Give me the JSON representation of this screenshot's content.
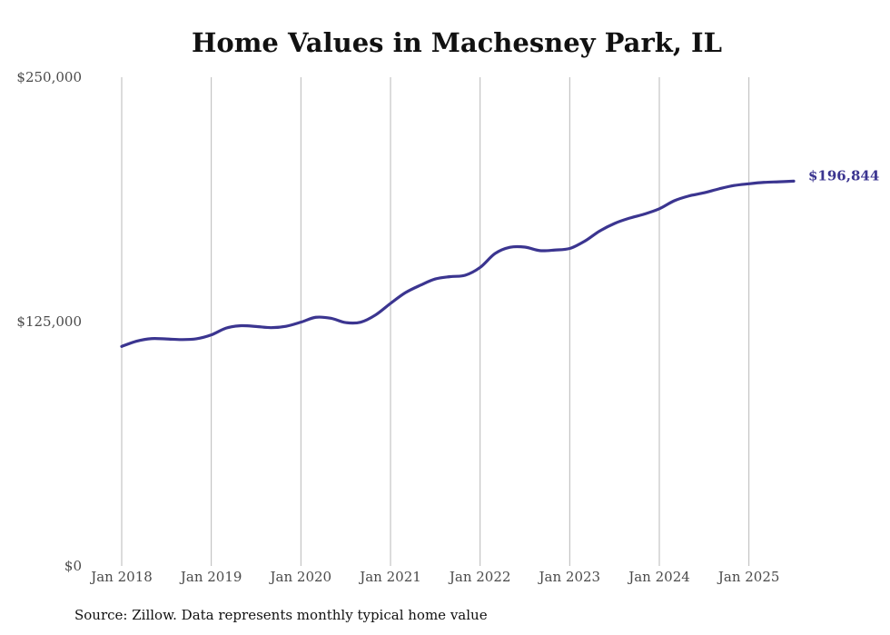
{
  "chart_data": {
    "type": "line",
    "title": "Home Values in Machesney Park, IL",
    "source_note": "Source: Zillow. Data represents monthly typical home value",
    "y_ticks": [
      {
        "value": 0,
        "label": "$0"
      },
      {
        "value": 125000,
        "label": "$125,000"
      },
      {
        "value": 250000,
        "label": "$250,000"
      }
    ],
    "x_ticks": [
      {
        "value": "2018-01",
        "label": "Jan 2018"
      },
      {
        "value": "2019-01",
        "label": "Jan 2019"
      },
      {
        "value": "2020-01",
        "label": "Jan 2020"
      },
      {
        "value": "2021-01",
        "label": "Jan 2021"
      },
      {
        "value": "2022-01",
        "label": "Jan 2022"
      },
      {
        "value": "2023-01",
        "label": "Jan 2023"
      },
      {
        "value": "2024-01",
        "label": "Jan 2024"
      },
      {
        "value": "2025-01",
        "label": "Jan 2025"
      }
    ],
    "ylim": [
      0,
      250000
    ],
    "xlim": [
      "2018-01",
      "2025-07"
    ],
    "grid": "vertical",
    "line_color": "#3b3590",
    "end_label": "$196,844",
    "series": [
      {
        "x": [
          "2018-01",
          "2018-03",
          "2018-05",
          "2018-07",
          "2018-09",
          "2018-11",
          "2019-01",
          "2019-03",
          "2019-05",
          "2019-07",
          "2019-09",
          "2019-11",
          "2020-01",
          "2020-03",
          "2020-05",
          "2020-07",
          "2020-09",
          "2020-11",
          "2021-01",
          "2021-03",
          "2021-05",
          "2021-07",
          "2021-09",
          "2021-11",
          "2022-01",
          "2022-03",
          "2022-05",
          "2022-07",
          "2022-09",
          "2022-11",
          "2023-01",
          "2023-03",
          "2023-05",
          "2023-07",
          "2023-09",
          "2023-11",
          "2024-01",
          "2024-03",
          "2024-05",
          "2024-07",
          "2024-09",
          "2024-11",
          "2025-01",
          "2025-03",
          "2025-05",
          "2025-07"
        ],
        "values": [
          112300,
          115000,
          116300,
          116100,
          115800,
          116200,
          118200,
          121700,
          122900,
          122500,
          121900,
          122600,
          124700,
          127200,
          126700,
          124500,
          124700,
          128400,
          134300,
          139800,
          143600,
          146800,
          148000,
          148700,
          152700,
          159800,
          163000,
          163100,
          161300,
          161600,
          162400,
          166100,
          171300,
          175200,
          177900,
          180000,
          182700,
          186800,
          189300,
          190900,
          192900,
          194600,
          195500,
          196200,
          196500,
          196844
        ]
      }
    ]
  }
}
